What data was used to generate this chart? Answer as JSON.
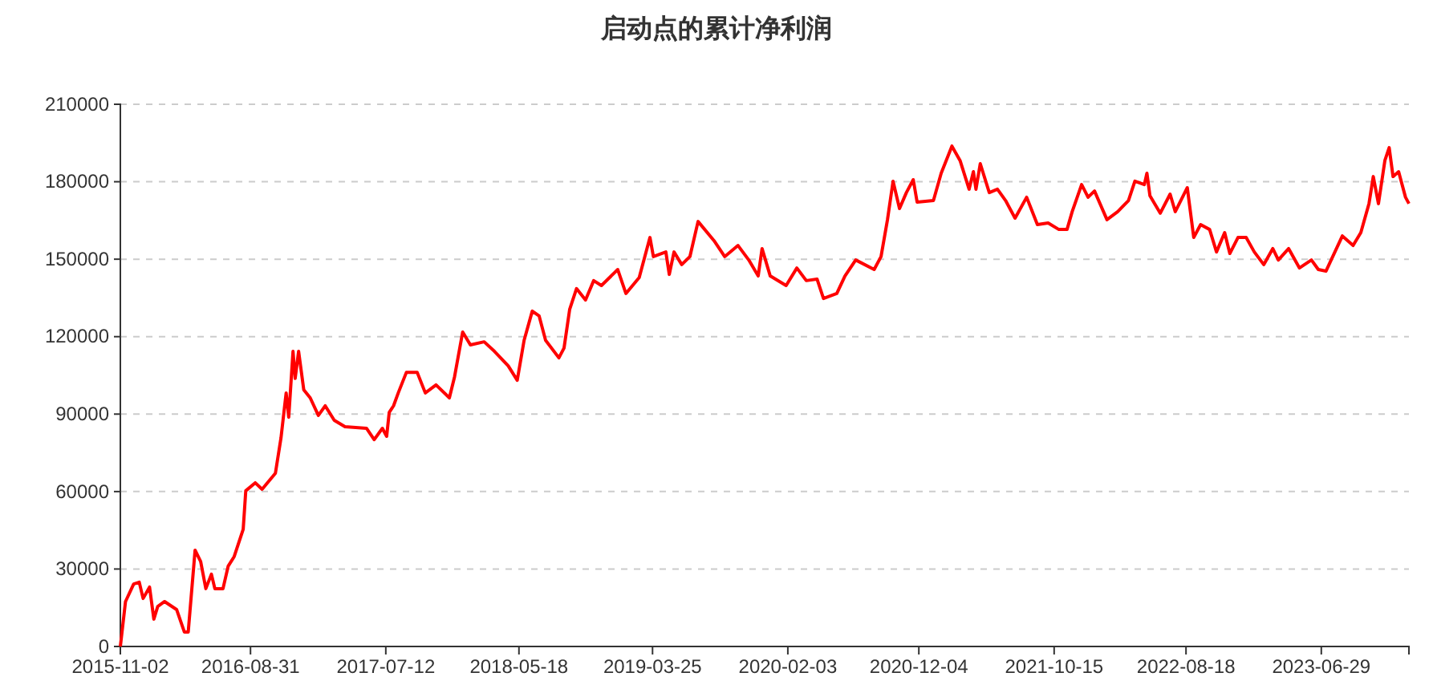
{
  "chart_data": {
    "type": "line",
    "title": "启动点的累计净利润",
    "grid": "y",
    "marker": "none",
    "line_style": "solid",
    "xlim": [
      "2015-11-02",
      "2024-01-19"
    ],
    "xticks": [
      "2015-11-02",
      "2016-08-31",
      "2017-07-12",
      "2018-05-18",
      "2019-03-25",
      "2020-02-03",
      "2020-12-04",
      "2021-10-15",
      "2022-08-18",
      "2023-06-29"
    ],
    "ylim": [
      0,
      210000
    ],
    "yticks": [
      0,
      30000,
      60000,
      90000,
      120000,
      150000,
      180000,
      210000
    ],
    "x": [
      "2015-11-02",
      "2015-11-14",
      "2015-12-03",
      "2015-12-16",
      "2015-12-25",
      "2016-01-09",
      "2016-01-19",
      "2016-01-28",
      "2016-02-13",
      "2016-03-12",
      "2016-03-30",
      "2016-04-08",
      "2016-04-24",
      "2016-05-07",
      "2016-05-19",
      "2016-06-01",
      "2016-06-09",
      "2016-06-28",
      "2016-07-10",
      "2016-07-24",
      "2016-08-14",
      "2016-08-20",
      "2016-09-11",
      "2016-09-27",
      "2016-10-28",
      "2016-11-10",
      "2016-11-22",
      "2016-11-28",
      "2016-12-08",
      "2016-12-13",
      "2016-12-21",
      "2017-01-02",
      "2017-01-17",
      "2017-02-05",
      "2017-02-21",
      "2017-03-14",
      "2017-04-08",
      "2017-05-28",
      "2017-06-15",
      "2017-07-04",
      "2017-07-14",
      "2017-07-20",
      "2017-07-30",
      "2017-08-10",
      "2017-08-29",
      "2017-09-23",
      "2017-10-12",
      "2017-11-06",
      "2017-12-07",
      "2017-12-19",
      "2018-01-07",
      "2018-01-25",
      "2018-02-26",
      "2018-03-22",
      "2018-04-23",
      "2018-05-14",
      "2018-05-30",
      "2018-06-18",
      "2018-07-04",
      "2018-07-19",
      "2018-08-19",
      "2018-08-31",
      "2018-09-13",
      "2018-09-29",
      "2018-10-20",
      "2018-11-08",
      "2018-11-26",
      "2019-01-03",
      "2019-01-22",
      "2019-02-22",
      "2019-03-19",
      "2019-03-27",
      "2019-04-25",
      "2019-05-03",
      "2019-05-14",
      "2019-06-01",
      "2019-06-20",
      "2019-07-09",
      "2019-08-15",
      "2019-09-09",
      "2019-10-10",
      "2019-11-04",
      "2019-11-26",
      "2019-12-05",
      "2019-12-24",
      "2020-01-30",
      "2020-02-24",
      "2020-03-17",
      "2020-04-11",
      "2020-04-26",
      "2020-05-27",
      "2020-06-15",
      "2020-07-10",
      "2020-08-22",
      "2020-09-07",
      "2020-09-22",
      "2020-10-05",
      "2020-10-20",
      "2020-11-05",
      "2020-11-21",
      "2020-11-30",
      "2021-01-07",
      "2021-01-25",
      "2021-02-19",
      "2021-03-10",
      "2021-03-31",
      "2021-04-10",
      "2021-04-16",
      "2021-04-26",
      "2021-05-17",
      "2021-06-05",
      "2021-06-24",
      "2021-07-16",
      "2021-08-12",
      "2021-09-06",
      "2021-10-01",
      "2021-10-26",
      "2021-11-14",
      "2021-11-26",
      "2021-12-18",
      "2022-01-02",
      "2022-01-17",
      "2022-02-15",
      "2022-03-12",
      "2022-04-06",
      "2022-04-21",
      "2022-05-13",
      "2022-05-19",
      "2022-05-26",
      "2022-06-19",
      "2022-07-12",
      "2022-07-24",
      "2022-08-21",
      "2022-09-05",
      "2022-09-21",
      "2022-10-12",
      "2022-10-28",
      "2022-11-16",
      "2022-11-28",
      "2022-12-17",
      "2023-01-05",
      "2023-01-24",
      "2023-02-15",
      "2023-03-08",
      "2023-03-21",
      "2023-04-14",
      "2023-05-09",
      "2023-06-06",
      "2023-06-22",
      "2023-07-10",
      "2023-08-17",
      "2023-09-11",
      "2023-09-29",
      "2023-10-18",
      "2023-10-28",
      "2023-11-09",
      "2023-11-24",
      "2023-12-04",
      "2023-12-13",
      "2023-12-26",
      "2024-01-11",
      "2024-01-19"
    ],
    "series": [
      {
        "color": "#ff0000",
        "values": [
          0,
          17400,
          24200,
          24900,
          18600,
          23000,
          10600,
          15500,
          17400,
          14300,
          5600,
          5600,
          37300,
          32900,
          22400,
          28000,
          22400,
          22400,
          31100,
          34800,
          45400,
          60300,
          63400,
          60900,
          67100,
          80800,
          98200,
          88800,
          114300,
          103800,
          114300,
          99400,
          96300,
          89500,
          93200,
          87600,
          85100,
          84500,
          80100,
          84500,
          81400,
          90700,
          93200,
          98200,
          106200,
          106200,
          98200,
          101300,
          96300,
          104400,
          121800,
          116800,
          118000,
          114300,
          108700,
          103100,
          118600,
          129900,
          128000,
          118600,
          111800,
          115600,
          130500,
          138600,
          134200,
          141700,
          139800,
          146000,
          136700,
          142900,
          158400,
          151000,
          152800,
          144100,
          152800,
          147900,
          151000,
          164600,
          157200,
          151000,
          155300,
          149700,
          143500,
          154100,
          143500,
          139800,
          146600,
          141700,
          142300,
          134800,
          136700,
          143500,
          149700,
          146000,
          151000,
          165300,
          180200,
          169600,
          175800,
          180800,
          172100,
          172700,
          183300,
          193800,
          188200,
          177100,
          183900,
          177100,
          187000,
          175800,
          177100,
          172700,
          165900,
          174000,
          163400,
          164000,
          161500,
          161500,
          168400,
          178900,
          174000,
          176400,
          165300,
          168400,
          172700,
          180200,
          178900,
          183300,
          174600,
          167800,
          175200,
          168400,
          177700,
          158400,
          163400,
          161500,
          152800,
          160300,
          152200,
          158400,
          158400,
          152800,
          147900,
          154100,
          149700,
          154100,
          146600,
          149700,
          146000,
          145400,
          159000,
          155300,
          160300,
          171500,
          182000,
          171500,
          188200,
          193200,
          182000,
          183900,
          174000,
          171500
        ]
      }
    ]
  }
}
